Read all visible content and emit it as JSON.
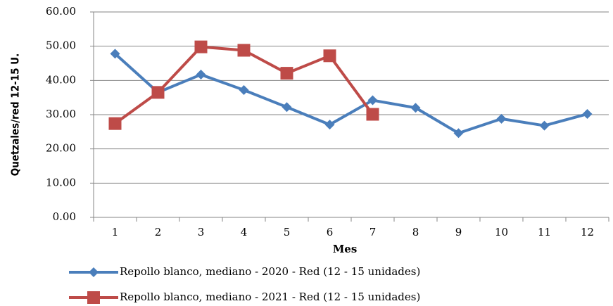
{
  "chart_data": {
    "type": "line",
    "x_label": "Mes",
    "y_label": "Quetzales/red 12-15 U.",
    "categories": [
      "1",
      "2",
      "3",
      "4",
      "5",
      "6",
      "7",
      "8",
      "9",
      "10",
      "11",
      "12"
    ],
    "series": [
      {
        "name": "Repollo blanco, mediano - 2020 - Red (12 - 15 unidades)",
        "color": "#4a7ebb",
        "marker": "diamond",
        "values": [
          47.8,
          36.5,
          41.7,
          37.2,
          32.2,
          27.1,
          34.2,
          32.0,
          24.6,
          28.8,
          26.8,
          30.2
        ]
      },
      {
        "name": "Repollo blanco, mediano - 2021 - Red (12 - 15 unidades)",
        "color": "#be4b48",
        "marker": "square",
        "values": [
          27.4,
          36.5,
          49.8,
          48.8,
          42.1,
          47.2,
          30.1,
          null,
          null,
          null,
          null,
          null
        ]
      }
    ],
    "ylim": [
      0,
      60
    ],
    "yticks": [
      {
        "value": 0,
        "label": "0.00"
      },
      {
        "value": 10,
        "label": "10.00"
      },
      {
        "value": 20,
        "label": "20.00"
      },
      {
        "value": 30,
        "label": "30.00"
      },
      {
        "value": 40,
        "label": "40.00"
      },
      {
        "value": 50,
        "label": "50.00"
      },
      {
        "value": 60,
        "label": "60.00"
      }
    ],
    "grid": true,
    "legend": "bottom"
  }
}
